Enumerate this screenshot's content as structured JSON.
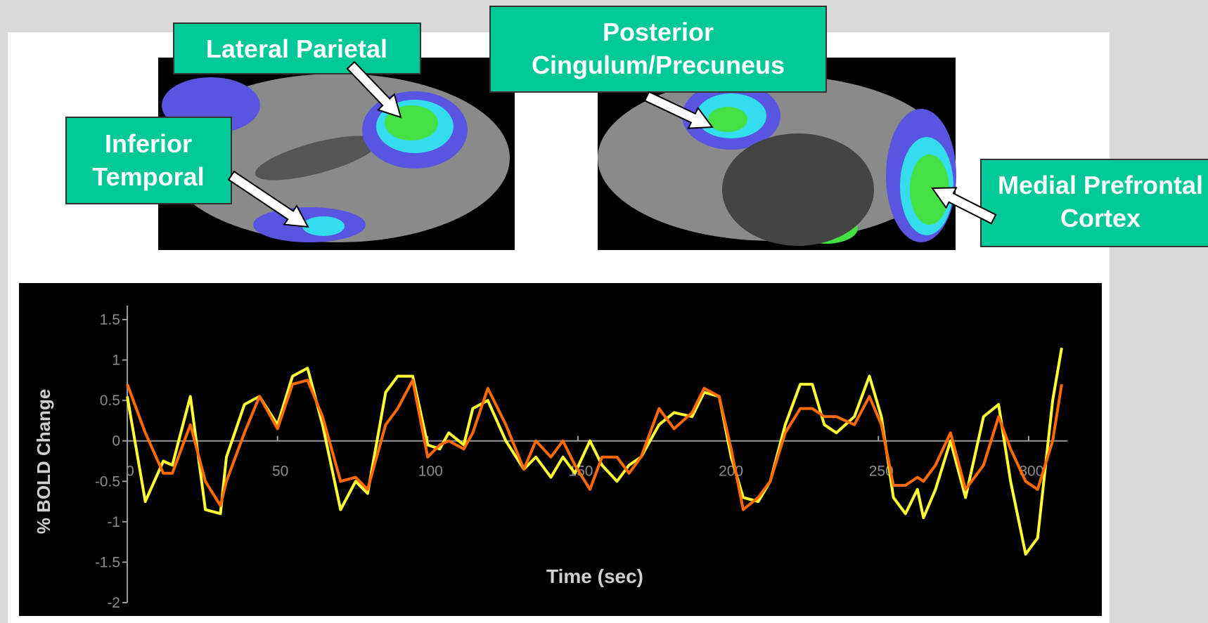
{
  "annotations": [
    "Lateral Parietal",
    "Inferior\nTemporal",
    "Posterior\nCingulum/Precuneus",
    "Medial Prefrontal\nCortex"
  ],
  "chart_data": {
    "type": "line",
    "y_label": "% BOLD Change",
    "x_label": "Time (sec)",
    "x": [
      0,
      6,
      12,
      15,
      21,
      26,
      31,
      33,
      39,
      44,
      50,
      55,
      60,
      65,
      71,
      76,
      80,
      86,
      90,
      95,
      100,
      104,
      107,
      112,
      115,
      120,
      126,
      132,
      136,
      141,
      145,
      149,
      154,
      158,
      163,
      167,
      171,
      177,
      182,
      188,
      192,
      197,
      201,
      205,
      210,
      214,
      219,
      224,
      228,
      232,
      236,
      242,
      247,
      251,
      255,
      259,
      263,
      265,
      269,
      274,
      279,
      285,
      290,
      294,
      299,
      303,
      308,
      311
    ],
    "series": [
      {
        "color": "#ffff33",
        "values": [
          0.55,
          -0.75,
          -0.25,
          -0.3,
          0.55,
          -0.85,
          -0.9,
          -0.2,
          0.45,
          0.55,
          0.2,
          0.8,
          0.9,
          0.2,
          -0.85,
          -0.5,
          -0.65,
          0.6,
          0.8,
          0.8,
          -0.05,
          -0.1,
          0.1,
          -0.05,
          0.4,
          0.5,
          0.0,
          -0.35,
          -0.2,
          -0.45,
          -0.2,
          -0.4,
          0.0,
          -0.3,
          -0.5,
          -0.3,
          -0.2,
          0.2,
          0.35,
          0.3,
          0.6,
          0.55,
          -0.2,
          -0.7,
          -0.75,
          -0.5,
          0.2,
          0.7,
          0.7,
          0.2,
          0.1,
          0.3,
          0.8,
          0.3,
          -0.7,
          -0.9,
          -0.6,
          -0.95,
          -0.6,
          0.0,
          -0.7,
          0.3,
          0.45,
          -0.5,
          -1.4,
          -1.2,
          0.5,
          1.15
        ]
      },
      {
        "color": "#ff6a00",
        "values": [
          0.7,
          0.1,
          -0.4,
          -0.4,
          0.2,
          -0.5,
          -0.8,
          -0.5,
          0.1,
          0.55,
          0.15,
          0.7,
          0.75,
          0.3,
          -0.5,
          -0.45,
          -0.6,
          0.2,
          0.4,
          0.75,
          -0.2,
          -0.05,
          0.0,
          -0.1,
          0.1,
          0.65,
          0.2,
          -0.35,
          0.0,
          -0.2,
          0.0,
          -0.3,
          -0.6,
          -0.2,
          -0.2,
          -0.4,
          -0.2,
          0.4,
          0.15,
          0.35,
          0.65,
          0.55,
          -0.1,
          -0.85,
          -0.7,
          -0.5,
          0.1,
          0.4,
          0.4,
          0.3,
          0.3,
          0.2,
          0.55,
          0.2,
          -0.55,
          -0.55,
          -0.45,
          -0.5,
          -0.3,
          0.1,
          -0.6,
          -0.3,
          0.3,
          -0.1,
          -0.5,
          -0.6,
          0.0,
          0.7
        ]
      }
    ],
    "xlim": [
      0,
      320
    ],
    "xticks": [
      0,
      50,
      100,
      150,
      200,
      250,
      300
    ],
    "ylim": [
      -2,
      1.5
    ],
    "yticks": [
      -2,
      -1.5,
      -1,
      -0.5,
      0,
      0.5,
      1,
      1.5
    ]
  }
}
